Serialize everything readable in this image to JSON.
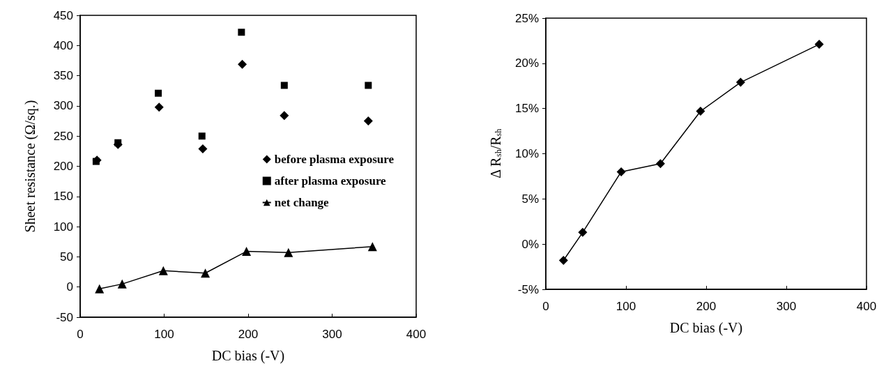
{
  "chart_data": [
    {
      "type": "scatter",
      "xlabel": "DC bias (-V)",
      "ylabel": "Sheet resistance (Ω/sq.)",
      "xlim": [
        0,
        400
      ],
      "xticks": [
        0,
        100,
        200,
        300,
        400
      ],
      "ylim": [
        -50,
        450
      ],
      "yticks": [
        -50,
        0,
        50,
        100,
        150,
        200,
        250,
        300,
        350,
        400,
        450
      ],
      "grid": false,
      "legend": "right",
      "series": [
        {
          "name": "before plasma exposure",
          "type": "scatter",
          "marker": "diamond",
          "color": "#000000",
          "x": [
            20,
            45,
            94,
            146,
            193,
            243,
            343
          ],
          "values": [
            210,
            236,
            298,
            229,
            369,
            284,
            275
          ]
        },
        {
          "name": "after plasma exposure",
          "type": "scatter",
          "marker": "square",
          "color": "#000000",
          "x": [
            19,
            45,
            93,
            145,
            192,
            243,
            343
          ],
          "values": [
            208,
            239,
            321,
            250,
            422,
            334,
            334
          ]
        },
        {
          "name": "net change",
          "type": "line",
          "marker": "triangle",
          "color": "#000000",
          "x": [
            23,
            50,
            99,
            149,
            198,
            248,
            348
          ],
          "values": [
            -3,
            5,
            27,
            23,
            59,
            57,
            67
          ]
        }
      ]
    },
    {
      "type": "line",
      "xlabel": "DC bias (-V)",
      "ylabel": "Δ R$_{sh}$/R$_{sh}$",
      "xlim": [
        0,
        400
      ],
      "xticks": [
        0,
        100,
        200,
        300,
        400
      ],
      "ylim": [
        -5,
        25
      ],
      "yticks": [
        {
          "value": -5,
          "label": "-5%"
        },
        {
          "value": 0,
          "label": "0%"
        },
        {
          "value": 5,
          "label": "5%"
        },
        {
          "value": 10,
          "label": "10%"
        },
        {
          "value": 15,
          "label": "15%"
        },
        {
          "value": 20,
          "label": "20%"
        },
        {
          "value": 25,
          "label": "25%"
        }
      ],
      "grid": false,
      "legend": false,
      "marker": "diamond",
      "series": [
        {
          "color": "#000000",
          "x": [
            22,
            46,
            94,
            143,
            193,
            243,
            341
          ],
          "values": [
            -1.8,
            1.3,
            8.0,
            8.9,
            14.7,
            17.9,
            22.1
          ]
        }
      ]
    }
  ]
}
